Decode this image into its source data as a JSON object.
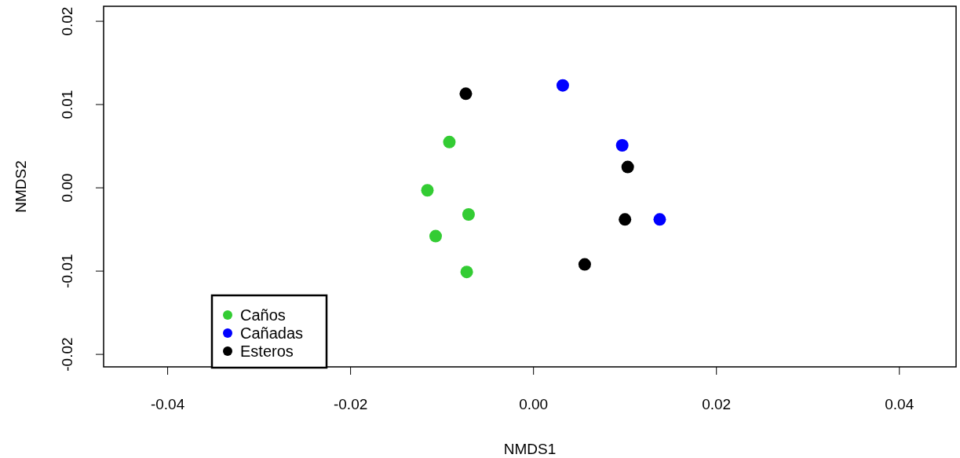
{
  "chart_data": {
    "type": "scatter",
    "xlabel": "NMDS1",
    "ylabel": "NMDS2",
    "xlim": [
      -0.047,
      0.0462
    ],
    "ylim": [
      -0.0215,
      0.0218
    ],
    "xticks": [
      {
        "value": -0.04,
        "label": "-0.04"
      },
      {
        "value": -0.02,
        "label": "-0.02"
      },
      {
        "value": 0,
        "label": "0.00"
      },
      {
        "value": 0.02,
        "label": "0.02"
      },
      {
        "value": 0.04,
        "label": "0.04"
      }
    ],
    "yticks": [
      {
        "value": -0.02,
        "label": "-0.02"
      },
      {
        "value": -0.01,
        "label": "-0.01"
      },
      {
        "value": 0,
        "label": "0.00"
      },
      {
        "value": 0.01,
        "label": "0.01"
      },
      {
        "value": 0.02,
        "label": "0.02"
      }
    ],
    "marker": "circle",
    "legend": "bottom left",
    "series": [
      {
        "name": "Caños",
        "color": "#33cc33",
        "x": [
          -0.0092,
          -0.0116,
          -0.0071,
          -0.0107,
          -0.0073
        ],
        "values": [
          0.0055,
          -0.0003,
          -0.0032,
          -0.0058,
          -0.0101
        ]
      },
      {
        "name": "Cañadas",
        "color": "#0000ff",
        "x": [
          0.0032,
          0.0097,
          0.0138
        ],
        "values": [
          0.0123,
          0.0051,
          -0.0038
        ]
      },
      {
        "name": "Esteros",
        "color": "#000000",
        "x": [
          -0.0074,
          0.0103,
          0.01,
          0.0056
        ],
        "values": [
          0.0113,
          0.0025,
          -0.0038,
          -0.0092
        ]
      }
    ]
  }
}
